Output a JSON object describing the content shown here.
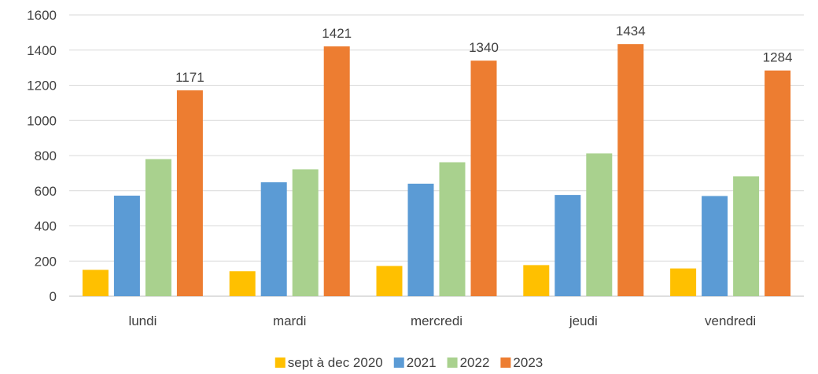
{
  "chart_data": {
    "type": "bar",
    "title": "",
    "xlabel": "",
    "ylabel": "",
    "categories": [
      "lundi",
      "mardi",
      "mercredi",
      "jeudi",
      "vendredi"
    ],
    "series": [
      {
        "name": "sept à dec 2020",
        "color": "#FFC000",
        "values": [
          150,
          142,
          172,
          177,
          158
        ]
      },
      {
        "name": "2021",
        "color": "#5B9BD5",
        "values": [
          572,
          648,
          640,
          576,
          570
        ]
      },
      {
        "name": "2022",
        "color": "#A9D18E",
        "values": [
          780,
          722,
          762,
          812,
          682
        ]
      },
      {
        "name": "2023",
        "color": "#ED7D31",
        "values": [
          1171,
          1421,
          1340,
          1434,
          1284
        ],
        "data_labels": [
          "1171",
          "1421",
          "1340",
          "1434",
          "1284"
        ]
      }
    ],
    "ylim": [
      0,
      1600
    ],
    "yticks": [
      "0",
      "200",
      "400",
      "600",
      "800",
      "1000",
      "1200",
      "1400",
      "1600"
    ],
    "grid": true,
    "legend_position": "bottom"
  }
}
